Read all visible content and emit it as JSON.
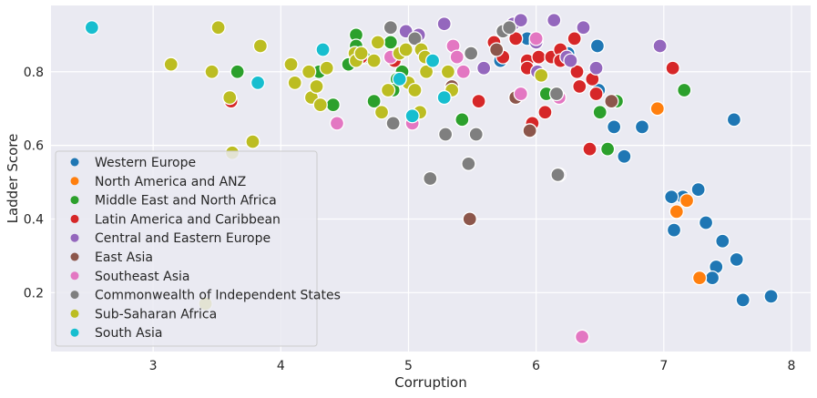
{
  "chart_data": {
    "type": "scatter",
    "title": "",
    "xlabel": "Corruption",
    "ylabel": "Ladder Score",
    "xlim": [
      2.2,
      8.15
    ],
    "ylim": [
      0.04,
      0.98
    ],
    "xticks": [
      "3",
      "4",
      "5",
      "6",
      "7",
      "8"
    ],
    "yticks": [
      "0.2",
      "0.4",
      "0.6",
      "0.8"
    ],
    "grid": true,
    "legend_position": "bottom-left",
    "series": [
      {
        "name": "Western Europe",
        "color": "#1f77b4",
        "points": [
          [
            7.84,
            0.19
          ],
          [
            7.62,
            0.18
          ],
          [
            7.57,
            0.29
          ],
          [
            7.55,
            0.67
          ],
          [
            7.46,
            0.34
          ],
          [
            7.41,
            0.27
          ],
          [
            7.38,
            0.24
          ],
          [
            7.33,
            0.39
          ],
          [
            7.27,
            0.48
          ],
          [
            7.15,
            0.46
          ],
          [
            7.06,
            0.46
          ],
          [
            7.08,
            0.37
          ],
          [
            6.83,
            0.65
          ],
          [
            6.69,
            0.57
          ],
          [
            6.61,
            0.65
          ],
          [
            6.49,
            0.75
          ],
          [
            6.48,
            0.87
          ],
          [
            6.16,
            0.74
          ],
          [
            5.93,
            0.89
          ],
          [
            5.72,
            0.83
          ],
          [
            6.25,
            0.85
          ]
        ]
      },
      {
        "name": "North America and ANZ",
        "color": "#ff7f0e",
        "points": [
          [
            7.28,
            0.24
          ],
          [
            7.18,
            0.45
          ],
          [
            7.1,
            0.42
          ],
          [
            6.95,
            0.7
          ]
        ]
      },
      {
        "name": "Middle East and North Africa",
        "color": "#2ca02c",
        "points": [
          [
            4.59,
            0.9
          ],
          [
            4.59,
            0.87
          ],
          [
            4.65,
            0.84
          ],
          [
            4.53,
            0.82
          ],
          [
            4.86,
            0.88
          ],
          [
            4.95,
            0.8
          ],
          [
            4.91,
            0.78
          ],
          [
            4.88,
            0.75
          ],
          [
            4.41,
            0.71
          ],
          [
            4.73,
            0.72
          ],
          [
            4.3,
            0.8
          ],
          [
            3.66,
            0.8
          ],
          [
            5.42,
            0.67
          ],
          [
            6.08,
            0.74
          ],
          [
            6.5,
            0.69
          ],
          [
            6.56,
            0.59
          ],
          [
            6.63,
            0.72
          ],
          [
            7.16,
            0.75
          ]
        ]
      },
      {
        "name": "Latin America and Caribbean",
        "color": "#d62728",
        "points": [
          [
            3.61,
            0.72
          ],
          [
            4.63,
            0.84
          ],
          [
            4.89,
            0.83
          ],
          [
            5.55,
            0.72
          ],
          [
            5.67,
            0.88
          ],
          [
            5.74,
            0.84
          ],
          [
            5.84,
            0.89
          ],
          [
            5.93,
            0.83
          ],
          [
            5.93,
            0.81
          ],
          [
            5.97,
            0.66
          ],
          [
            6.02,
            0.84
          ],
          [
            6.07,
            0.69
          ],
          [
            6.12,
            0.84
          ],
          [
            6.19,
            0.86
          ],
          [
            6.19,
            0.83
          ],
          [
            6.3,
            0.89
          ],
          [
            6.32,
            0.8
          ],
          [
            6.34,
            0.76
          ],
          [
            6.42,
            0.59
          ],
          [
            6.44,
            0.78
          ],
          [
            6.47,
            0.74
          ],
          [
            7.07,
            0.81
          ]
        ]
      },
      {
        "name": "Central and Eastern Europe",
        "color": "#9467bd",
        "points": [
          [
            4.98,
            0.91
          ],
          [
            5.08,
            0.9
          ],
          [
            5.28,
            0.93
          ],
          [
            5.59,
            0.81
          ],
          [
            5.82,
            0.93
          ],
          [
            5.88,
            0.94
          ],
          [
            6.0,
            0.88
          ],
          [
            6.01,
            0.8
          ],
          [
            6.14,
            0.94
          ],
          [
            6.18,
            0.52
          ],
          [
            6.24,
            0.84
          ],
          [
            6.27,
            0.83
          ],
          [
            6.37,
            0.92
          ],
          [
            6.47,
            0.81
          ],
          [
            6.97,
            0.87
          ]
        ]
      },
      {
        "name": "East Asia",
        "color": "#8c564b",
        "points": [
          [
            5.34,
            0.76
          ],
          [
            5.48,
            0.4
          ],
          [
            5.69,
            0.86
          ],
          [
            5.84,
            0.73
          ],
          [
            5.95,
            0.64
          ],
          [
            6.59,
            0.72
          ]
        ]
      },
      {
        "name": "Southeast Asia",
        "color": "#e377c2",
        "points": [
          [
            4.44,
            0.66
          ],
          [
            4.86,
            0.84
          ],
          [
            5.03,
            0.66
          ],
          [
            5.35,
            0.87
          ],
          [
            5.38,
            0.84
          ],
          [
            5.43,
            0.8
          ],
          [
            5.88,
            0.74
          ],
          [
            6.0,
            0.89
          ],
          [
            6.18,
            0.73
          ],
          [
            6.36,
            0.08
          ]
        ]
      },
      {
        "name": "Commonwealth of Independent States",
        "color": "#7f7f7f",
        "points": [
          [
            4.86,
            0.92
          ],
          [
            4.88,
            0.66
          ],
          [
            5.05,
            0.89
          ],
          [
            5.17,
            0.51
          ],
          [
            5.29,
            0.63
          ],
          [
            5.47,
            0.55
          ],
          [
            5.53,
            0.63
          ],
          [
            5.49,
            0.85
          ],
          [
            5.74,
            0.91
          ],
          [
            5.79,
            0.92
          ],
          [
            6.17,
            0.52
          ],
          [
            6.16,
            0.74
          ]
        ]
      },
      {
        "name": "Sub-Saharan Africa",
        "color": "#bcbd22",
        "points": [
          [
            3.14,
            0.82
          ],
          [
            3.46,
            0.8
          ],
          [
            3.51,
            0.92
          ],
          [
            3.6,
            0.73
          ],
          [
            3.62,
            0.58
          ],
          [
            3.78,
            0.61
          ],
          [
            3.84,
            0.87
          ],
          [
            3.41,
            0.17
          ],
          [
            4.08,
            0.82
          ],
          [
            4.11,
            0.77
          ],
          [
            4.22,
            0.8
          ],
          [
            4.24,
            0.73
          ],
          [
            4.28,
            0.76
          ],
          [
            4.31,
            0.71
          ],
          [
            4.36,
            0.81
          ],
          [
            4.58,
            0.85
          ],
          [
            4.59,
            0.83
          ],
          [
            4.63,
            0.85
          ],
          [
            4.73,
            0.83
          ],
          [
            4.76,
            0.88
          ],
          [
            4.79,
            0.69
          ],
          [
            4.84,
            0.75
          ],
          [
            4.93,
            0.85
          ],
          [
            4.98,
            0.86
          ],
          [
            5.0,
            0.77
          ],
          [
            5.05,
            0.75
          ],
          [
            5.09,
            0.69
          ],
          [
            5.1,
            0.86
          ],
          [
            5.13,
            0.84
          ],
          [
            5.14,
            0.8
          ],
          [
            5.31,
            0.8
          ],
          [
            5.34,
            0.75
          ],
          [
            6.04,
            0.79
          ]
        ]
      },
      {
        "name": "South Asia",
        "color": "#17becf",
        "points": [
          [
            2.52,
            0.92
          ],
          [
            3.82,
            0.77
          ],
          [
            4.33,
            0.86
          ],
          [
            4.93,
            0.78
          ],
          [
            5.03,
            0.68
          ],
          [
            5.19,
            0.83
          ],
          [
            5.28,
            0.73
          ]
        ]
      }
    ]
  }
}
